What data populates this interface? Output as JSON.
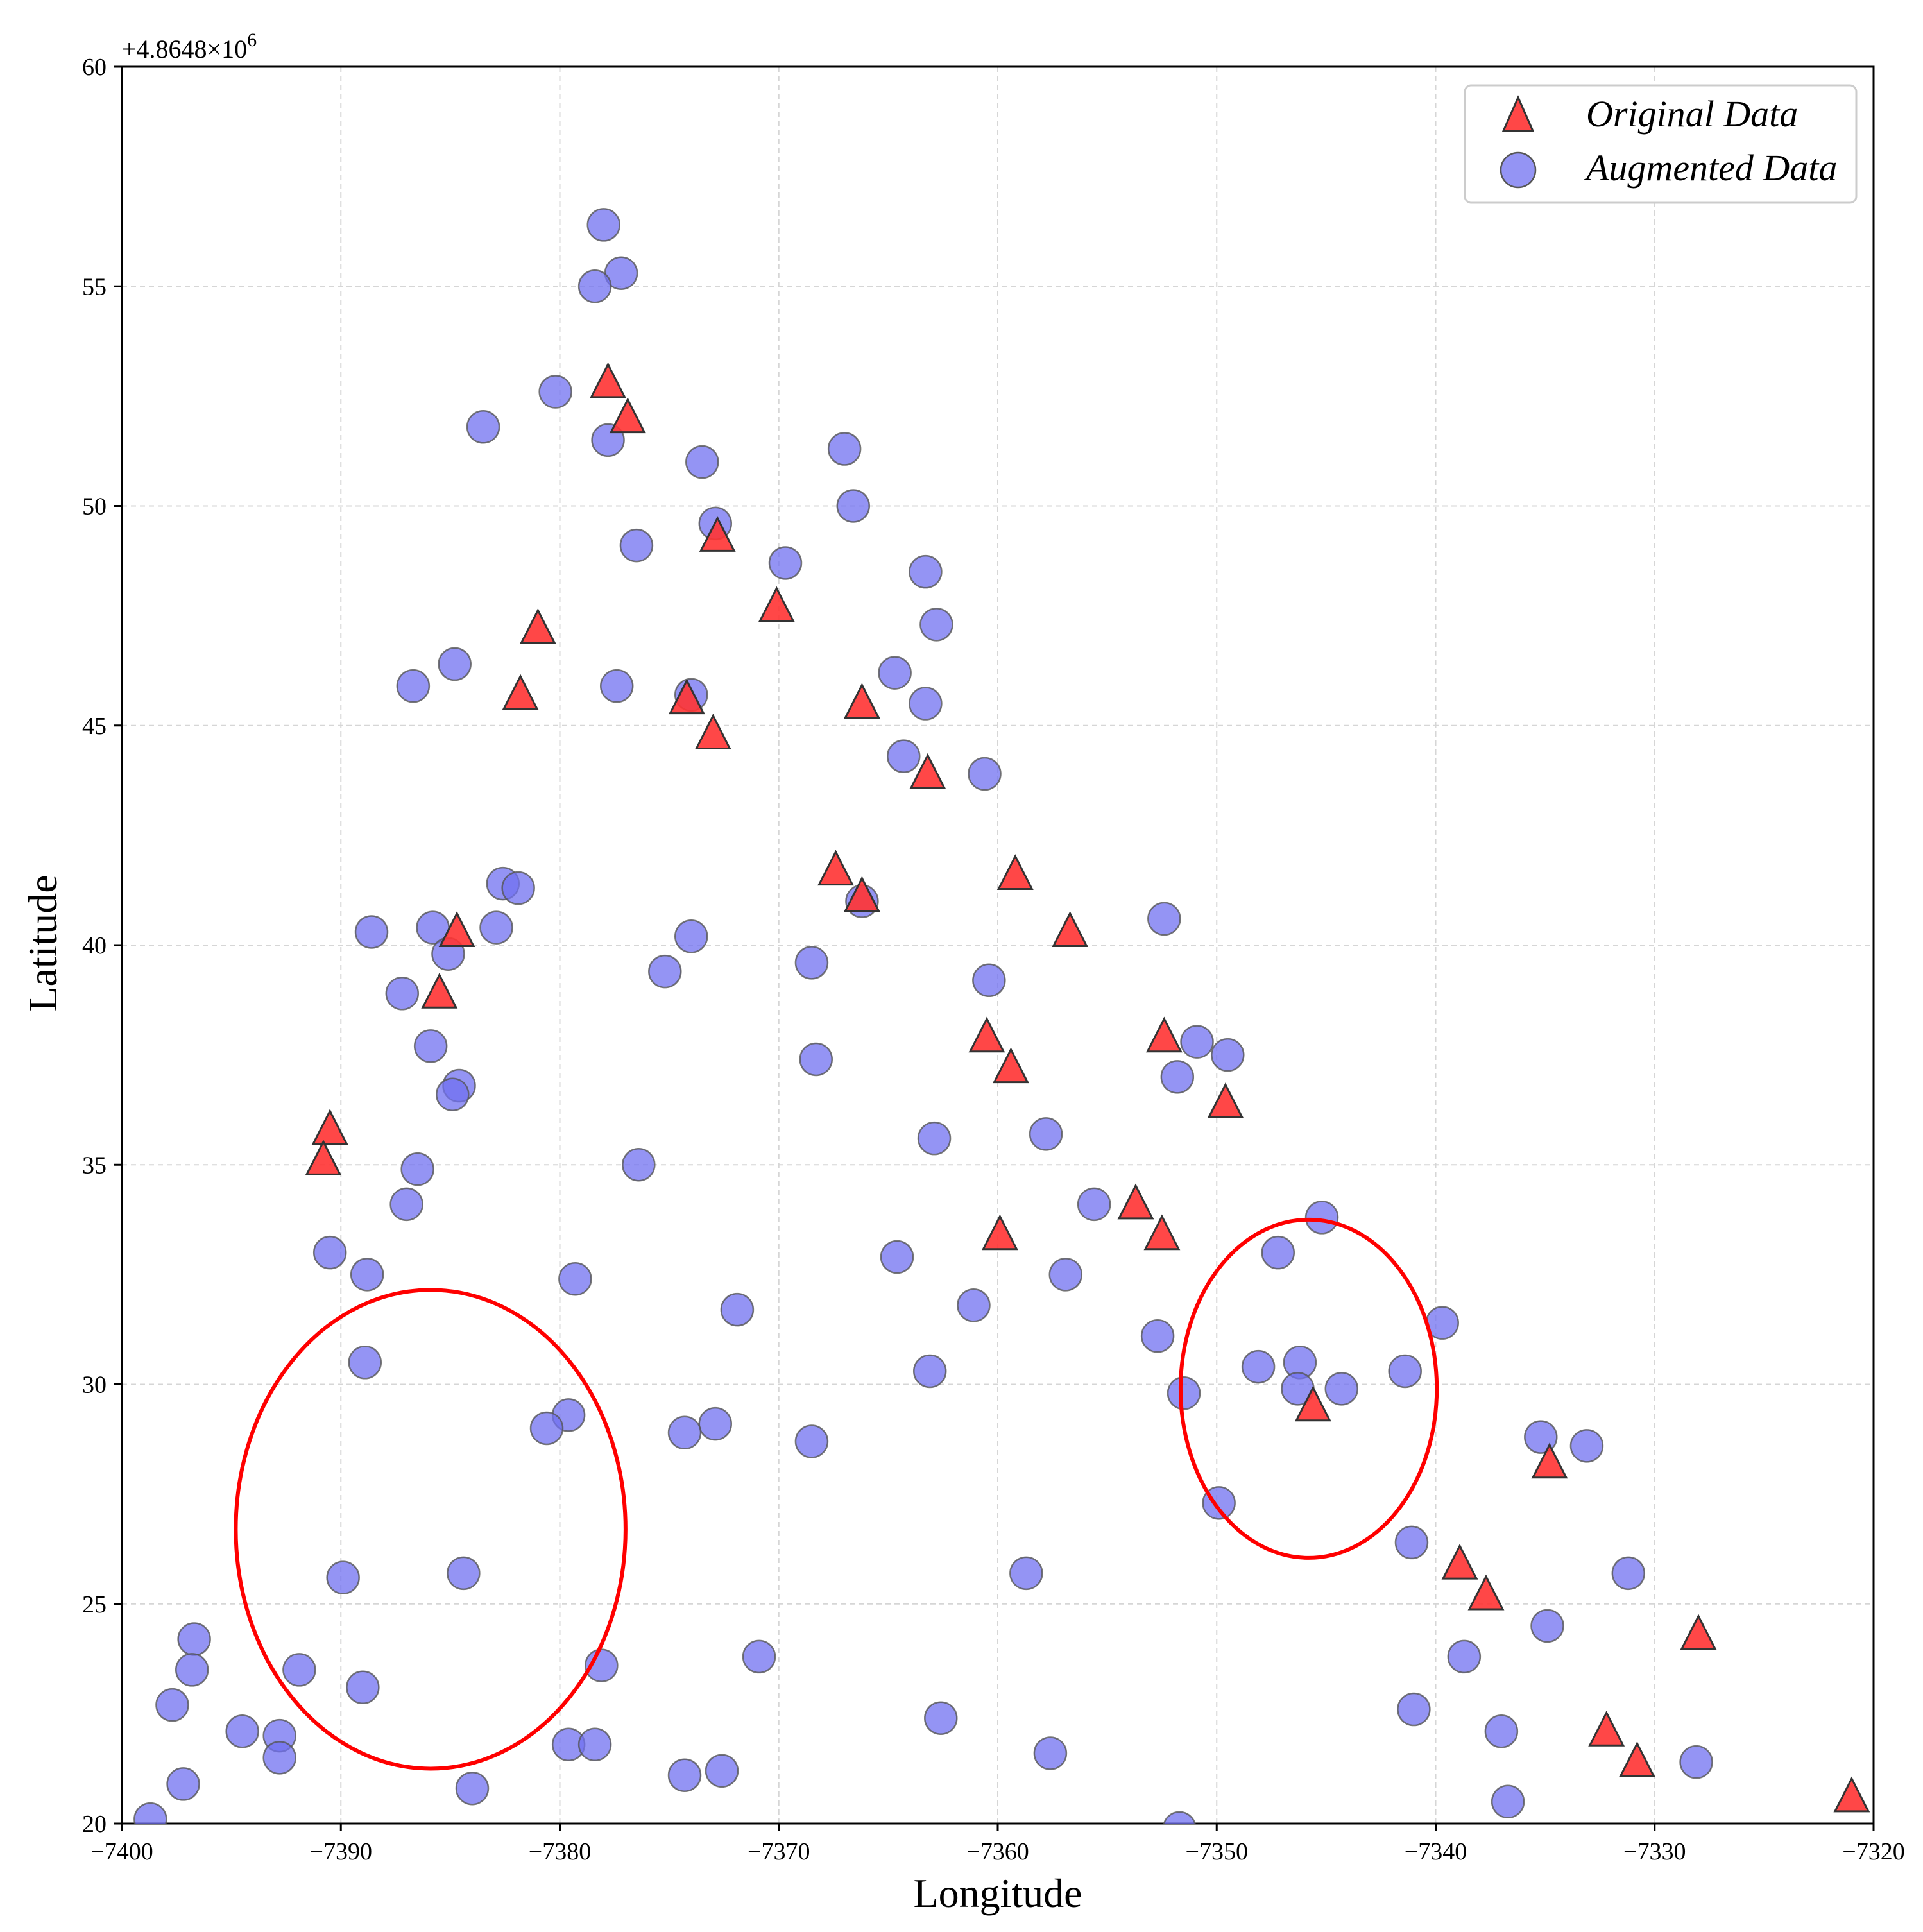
{
  "chart_data": {
    "type": "scatter",
    "xlabel": "Longitude",
    "ylabel": "Latitude",
    "xlim": [
      -7400,
      -7320
    ],
    "ylim": [
      20,
      60
    ],
    "x_ticks": [
      -7400,
      -7390,
      -7380,
      -7370,
      -7360,
      -7350,
      -7340,
      -7330,
      -7320
    ],
    "y_ticks": [
      20,
      25,
      30,
      35,
      40,
      45,
      50,
      55,
      60
    ],
    "x_tick_labels": [
      "−7400",
      "−7390",
      "−7380",
      "−7370",
      "−7360",
      "−7350",
      "−7340",
      "−7330",
      "−7320"
    ],
    "y_tick_labels": [
      "20",
      "25",
      "30",
      "35",
      "40",
      "45",
      "50",
      "55",
      "60"
    ],
    "y_offset_text": "+4.8648×10",
    "y_offset_exponent": "6",
    "grid": true,
    "legend_position": "top-right",
    "series": [
      {
        "name": "Original Data",
        "marker": "triangle",
        "color": "#ff3333",
        "edge_color": "#333333",
        "points": [
          [
            -7377.8,
            52.8
          ],
          [
            -7376.9,
            52.0
          ],
          [
            -7372.8,
            49.3
          ],
          [
            -7381.0,
            47.2
          ],
          [
            -7370.1,
            47.7
          ],
          [
            -7381.8,
            45.7
          ],
          [
            -7374.2,
            45.6
          ],
          [
            -7373.0,
            44.8
          ],
          [
            -7366.2,
            45.5
          ],
          [
            -7363.2,
            43.9
          ],
          [
            -7367.4,
            41.7
          ],
          [
            -7366.2,
            41.1
          ],
          [
            -7359.2,
            41.6
          ],
          [
            -7356.7,
            40.3
          ],
          [
            -7384.7,
            40.3
          ],
          [
            -7385.5,
            38.9
          ],
          [
            -7360.5,
            37.9
          ],
          [
            -7359.4,
            37.2
          ],
          [
            -7352.4,
            37.9
          ],
          [
            -7349.6,
            36.4
          ],
          [
            -7390.5,
            35.8
          ],
          [
            -7390.8,
            35.1
          ],
          [
            -7353.7,
            34.1
          ],
          [
            -7352.5,
            33.4
          ],
          [
            -7359.9,
            33.4
          ],
          [
            -7345.6,
            29.5
          ],
          [
            -7334.8,
            28.2
          ],
          [
            -7338.9,
            25.9
          ],
          [
            -7337.7,
            25.2
          ],
          [
            -7328.0,
            24.3
          ],
          [
            -7332.2,
            22.1
          ],
          [
            -7330.8,
            21.4
          ],
          [
            -7321.0,
            20.6
          ]
        ]
      },
      {
        "name": "Augmented Data",
        "marker": "circle",
        "color": "#7070f0",
        "edge_color": "#555555",
        "points": [
          [
            -7378.0,
            56.4
          ],
          [
            -7377.2,
            55.3
          ],
          [
            -7378.4,
            55.0
          ],
          [
            -7380.2,
            52.6
          ],
          [
            -7383.5,
            51.8
          ],
          [
            -7377.8,
            51.5
          ],
          [
            -7373.5,
            51.0
          ],
          [
            -7367.0,
            51.3
          ],
          [
            -7366.6,
            50.0
          ],
          [
            -7372.9,
            49.6
          ],
          [
            -7376.5,
            49.1
          ],
          [
            -7369.7,
            48.7
          ],
          [
            -7363.3,
            48.5
          ],
          [
            -7362.8,
            47.3
          ],
          [
            -7364.7,
            46.2
          ],
          [
            -7384.8,
            46.4
          ],
          [
            -7386.7,
            45.9
          ],
          [
            -7377.4,
            45.9
          ],
          [
            -7374.0,
            45.7
          ],
          [
            -7363.3,
            45.5
          ],
          [
            -7364.3,
            44.3
          ],
          [
            -7360.6,
            43.9
          ],
          [
            -7382.6,
            41.4
          ],
          [
            -7381.9,
            41.3
          ],
          [
            -7366.2,
            41.0
          ],
          [
            -7352.4,
            40.6
          ],
          [
            -7388.6,
            40.3
          ],
          [
            -7385.8,
            40.4
          ],
          [
            -7382.9,
            40.4
          ],
          [
            -7374.0,
            40.2
          ],
          [
            -7385.1,
            39.8
          ],
          [
            -7368.5,
            39.6
          ],
          [
            -7375.2,
            39.4
          ],
          [
            -7360.4,
            39.2
          ],
          [
            -7387.2,
            38.9
          ],
          [
            -7350.9,
            37.8
          ],
          [
            -7349.5,
            37.5
          ],
          [
            -7385.9,
            37.7
          ],
          [
            -7368.3,
            37.4
          ],
          [
            -7351.8,
            37.0
          ],
          [
            -7384.6,
            36.8
          ],
          [
            -7384.9,
            36.6
          ],
          [
            -7357.8,
            35.7
          ],
          [
            -7362.9,
            35.6
          ],
          [
            -7386.5,
            34.9
          ],
          [
            -7376.4,
            35.0
          ],
          [
            -7355.6,
            34.1
          ],
          [
            -7387.0,
            34.1
          ],
          [
            -7345.2,
            33.8
          ],
          [
            -7390.5,
            33.0
          ],
          [
            -7347.2,
            33.0
          ],
          [
            -7364.6,
            32.9
          ],
          [
            -7388.8,
            32.5
          ],
          [
            -7356.9,
            32.5
          ],
          [
            -7379.3,
            32.4
          ],
          [
            -7361.1,
            31.8
          ],
          [
            -7371.9,
            31.7
          ],
          [
            -7339.7,
            31.4
          ],
          [
            -7352.7,
            31.1
          ],
          [
            -7341.4,
            30.3
          ],
          [
            -7348.1,
            30.4
          ],
          [
            -7346.2,
            30.5
          ],
          [
            -7388.9,
            30.5
          ],
          [
            -7363.1,
            30.3
          ],
          [
            -7351.5,
            29.8
          ],
          [
            -7346.3,
            29.9
          ],
          [
            -7344.3,
            29.9
          ],
          [
            -7379.6,
            29.3
          ],
          [
            -7380.6,
            29.0
          ],
          [
            -7372.9,
            29.1
          ],
          [
            -7374.3,
            28.9
          ],
          [
            -7368.5,
            28.7
          ],
          [
            -7335.2,
            28.8
          ],
          [
            -7333.1,
            28.6
          ],
          [
            -7349.9,
            27.3
          ],
          [
            -7341.1,
            26.4
          ],
          [
            -7384.4,
            25.7
          ],
          [
            -7389.9,
            25.6
          ],
          [
            -7358.7,
            25.7
          ],
          [
            -7331.2,
            25.7
          ],
          [
            -7334.9,
            24.5
          ],
          [
            -7396.7,
            24.2
          ],
          [
            -7396.8,
            23.5
          ],
          [
            -7391.9,
            23.5
          ],
          [
            -7378.1,
            23.6
          ],
          [
            -7370.9,
            23.8
          ],
          [
            -7338.7,
            23.8
          ],
          [
            -7389.0,
            23.1
          ],
          [
            -7397.7,
            22.7
          ],
          [
            -7341.0,
            22.6
          ],
          [
            -7362.6,
            22.4
          ],
          [
            -7394.5,
            22.1
          ],
          [
            -7392.8,
            22.0
          ],
          [
            -7337.0,
            22.1
          ],
          [
            -7379.6,
            21.8
          ],
          [
            -7378.4,
            21.8
          ],
          [
            -7357.6,
            21.6
          ],
          [
            -7392.8,
            21.5
          ],
          [
            -7328.1,
            21.4
          ],
          [
            -7374.3,
            21.1
          ],
          [
            -7372.6,
            21.2
          ],
          [
            -7397.2,
            20.9
          ],
          [
            -7384.0,
            20.8
          ],
          [
            -7336.7,
            20.5
          ],
          [
            -7398.7,
            20.1
          ],
          [
            -7351.7,
            19.9
          ]
        ]
      }
    ],
    "annotations": [
      {
        "type": "ellipse",
        "color": "#ff0000",
        "center": [
          -7385.9,
          26.7
        ],
        "rx": 8.9,
        "ry": 5.45
      },
      {
        "type": "ellipse",
        "color": "#ff0000",
        "center": [
          -7345.8,
          29.9
        ],
        "rx": 5.85,
        "ry": 3.85
      }
    ]
  }
}
